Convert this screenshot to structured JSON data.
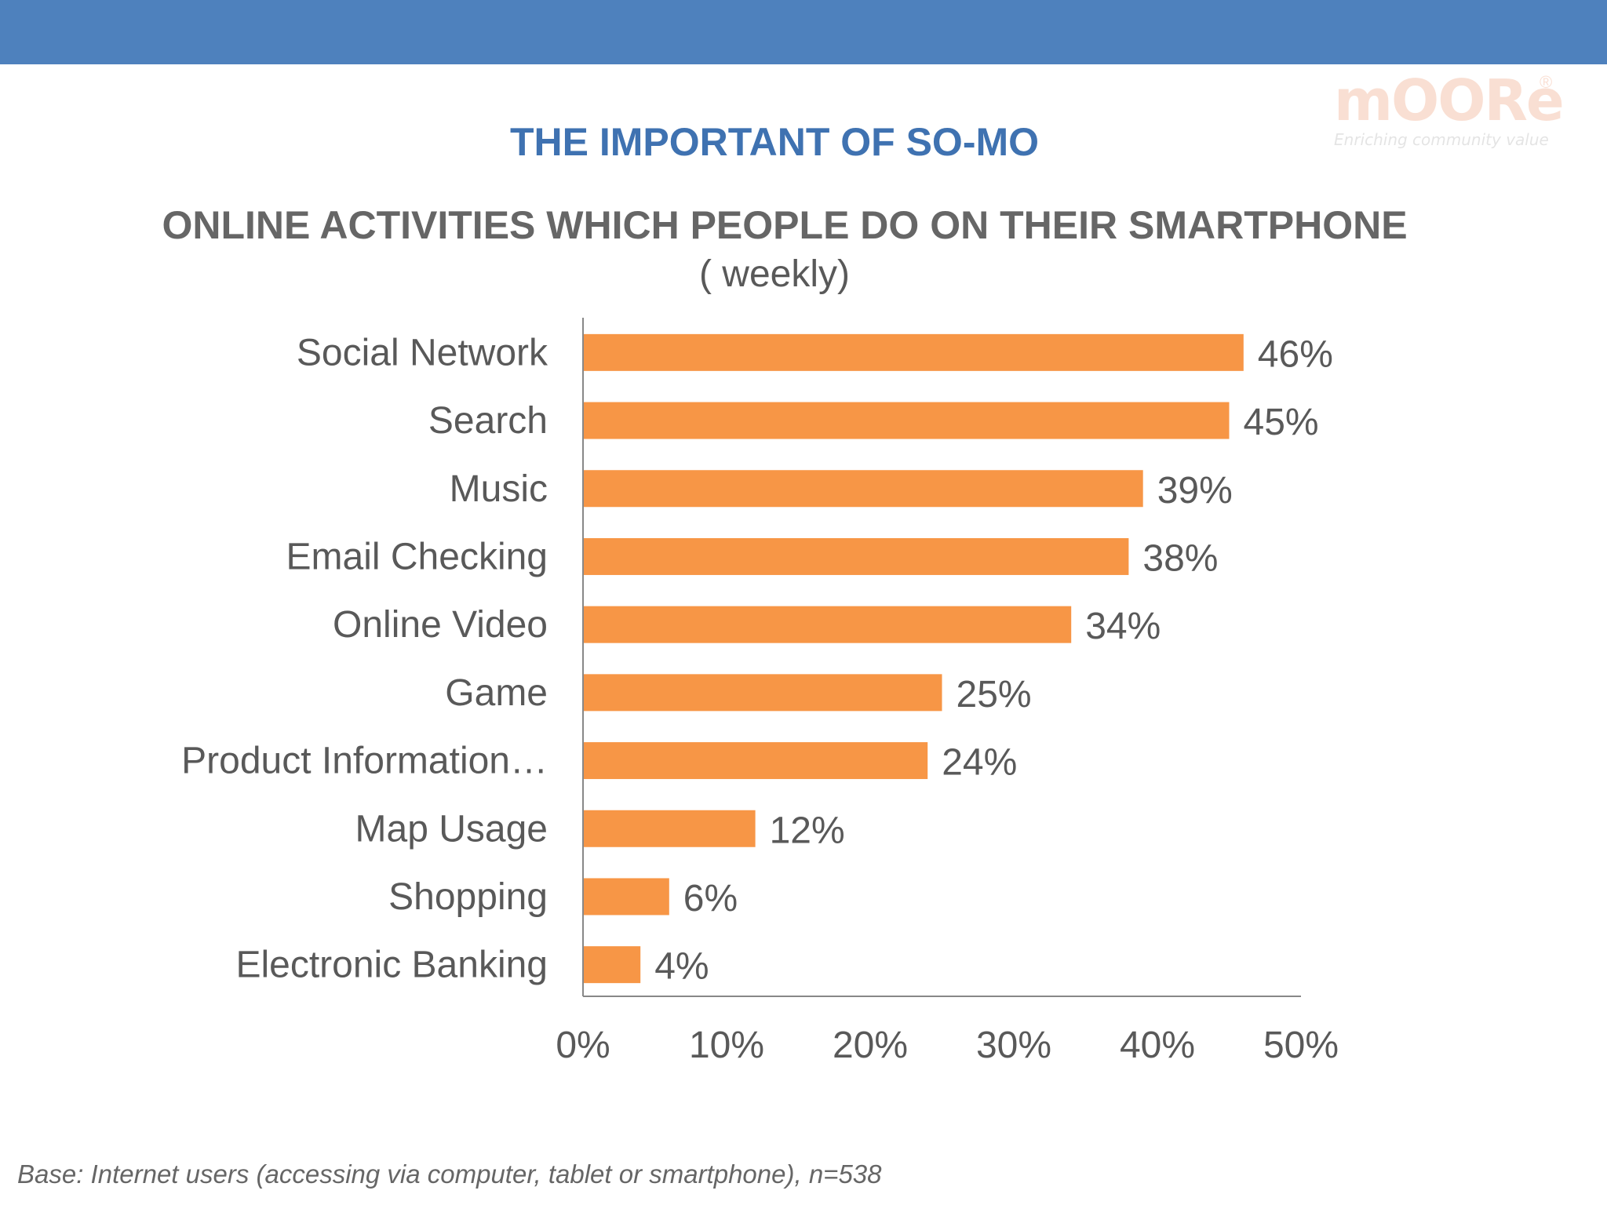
{
  "slide": {
    "title": "THE IMPORTANT OF SO-MO",
    "subtitle": "ONLINE ACTIVITIES WHICH PEOPLE DO ON THEIR SMARTPHONE",
    "period": "( weekly)",
    "footnote": "Base: Internet users (accessing via computer, tablet or smartphone), n=538",
    "logo": {
      "word": "mOORe",
      "tagline": "Enriching community value",
      "registered": "®"
    }
  },
  "colors": {
    "header_band": "#4e81bd",
    "bar": "#f79646",
    "axis": "#888888",
    "label_text": "#595959"
  },
  "chart_data": {
    "type": "bar",
    "orientation": "horizontal",
    "categories": [
      "Social Network",
      "Search",
      "Music",
      "Email Checking",
      "Online Video",
      "Game",
      "Product Information…",
      "Map Usage",
      "Shopping",
      "Electronic Banking"
    ],
    "series": [
      {
        "values": [
          46,
          45,
          39,
          38,
          34,
          25,
          24,
          12,
          6,
          4
        ]
      }
    ],
    "data_labels": [
      "46%",
      "45%",
      "39%",
      "38%",
      "34%",
      "25%",
      "24%",
      "12%",
      "6%",
      "4%"
    ],
    "xlim": [
      0,
      50
    ],
    "x_ticks": [
      0,
      10,
      20,
      30,
      40,
      50
    ],
    "x_tick_labels": [
      "0%",
      "10%",
      "20%",
      "30%",
      "40%",
      "50%"
    ],
    "grid": false,
    "legend": "none"
  }
}
